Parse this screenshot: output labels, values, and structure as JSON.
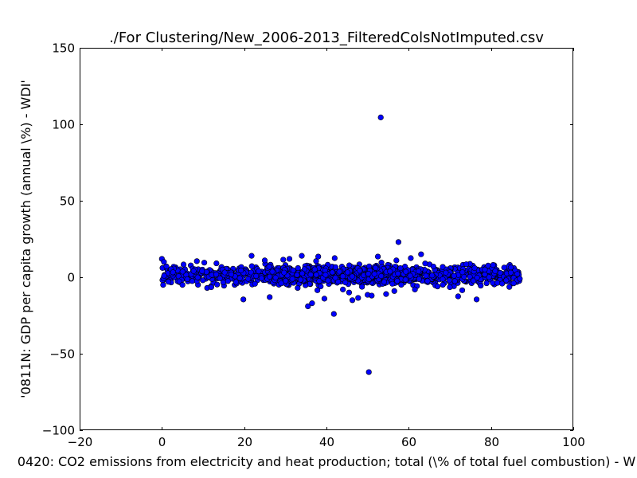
{
  "chart_data": {
    "type": "scatter",
    "title": "./For Clustering/New_2006-2013_FilteredColsNotImputed.csv",
    "xlabel": "0420: CO2 emissions from electricity and heat production; total  (\\% of total fuel combustion) - W",
    "ylabel": "'0811N: GDP per capita growth  (annual \\%) - WDI'",
    "xlim": [
      -20,
      100
    ],
    "ylim": [
      -100,
      150
    ],
    "xticks": [
      "−20",
      "0",
      "20",
      "40",
      "60",
      "80",
      "100"
    ],
    "yticks": [
      "−100",
      "−50",
      "0",
      "50",
      "100",
      "150"
    ],
    "grid": false,
    "marker_color": "#0000ff",
    "points": [
      [
        53.2,
        104.5
      ],
      [
        50.3,
        -62.0
      ],
      [
        57.5,
        23.0
      ],
      [
        63.0,
        15.0
      ],
      [
        21.8,
        14.0
      ],
      [
        41.8,
        -24.0
      ],
      [
        35.5,
        -19.0
      ],
      [
        36.5,
        -17.0
      ],
      [
        19.8,
        -14.5
      ],
      [
        26.2,
        -13.0
      ],
      [
        46.3,
        -15.0
      ],
      [
        47.7,
        -13.5
      ],
      [
        50.0,
        -11.5
      ],
      [
        51.0,
        -12.0
      ],
      [
        54.5,
        -11.0
      ],
      [
        72.0,
        -12.5
      ],
      [
        76.5,
        -14.5
      ],
      [
        39.5,
        -14.0
      ],
      [
        45.5,
        -10.0
      ],
      [
        44.0,
        -8.0
      ],
      [
        33.0,
        -7.0
      ],
      [
        37.8,
        -8.5
      ],
      [
        56.5,
        -9.0
      ],
      [
        61.5,
        -8.0
      ],
      [
        67.0,
        -6.0
      ],
      [
        70.0,
        -6.5
      ],
      [
        73.0,
        -8.5
      ],
      [
        77.5,
        -5.5
      ],
      [
        11.0,
        -7.0
      ],
      [
        12.0,
        -6.5
      ],
      [
        5.0,
        -5.0
      ],
      [
        0.3,
        -5.0
      ],
      [
        29.0,
        -4.0
      ],
      [
        86.3,
        -2.0
      ],
      [
        84.8,
        3.0
      ],
      [
        85.5,
        -4.0
      ],
      [
        87.0,
        -1.0
      ],
      [
        80.5,
        8.0
      ],
      [
        81.0,
        4.0
      ],
      [
        83.7,
        -2.0
      ],
      [
        76.0,
        6.0
      ],
      [
        78.5,
        5.0
      ],
      [
        74.0,
        8.5
      ],
      [
        69.0,
        3.0
      ],
      [
        71.0,
        1.0
      ],
      [
        0.0,
        12.0
      ],
      [
        0.5,
        10.0
      ],
      [
        8.5,
        10.5
      ],
      [
        34.0,
        14.0
      ],
      [
        38.0,
        13.5
      ],
      [
        42.0,
        12.5
      ],
      [
        52.5,
        13.5
      ],
      [
        57.0,
        11.0
      ],
      [
        60.5,
        12.5
      ],
      [
        64.0,
        9.0
      ],
      [
        66.0,
        7.0
      ],
      [
        25.0,
        11.0
      ],
      [
        29.5,
        11.5
      ],
      [
        31.0,
        12.0
      ]
    ],
    "band": {
      "x_min": 0,
      "x_max": 87,
      "y_center": 1.5,
      "y_spread": 5,
      "count": 1400,
      "seed": 7
    }
  }
}
